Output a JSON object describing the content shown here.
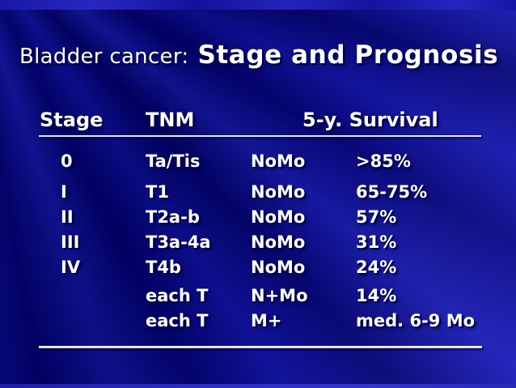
{
  "slide": {
    "title_prefix": "Bladder cancer:",
    "title_main": "Stage and Prognosis"
  },
  "table": {
    "headers": {
      "stage": "Stage",
      "tnm": "TNM",
      "survival": "5-y. Survival"
    },
    "rows": [
      {
        "stage": "0",
        "tnm": "Ta/Tis",
        "nm": "NoMo",
        "survival": ">85%"
      },
      {
        "stage": "I",
        "tnm": "T1",
        "nm": "NoMo",
        "survival": "65-75%"
      },
      {
        "stage": "II",
        "tnm": "T2a-b",
        "nm": "NoMo",
        "survival": "57%"
      },
      {
        "stage": "III",
        "tnm": "T3a-4a",
        "nm": "NoMo",
        "survival": "31%"
      },
      {
        "stage": "IV",
        "tnm": "T4b",
        "nm": "NoMo",
        "survival": "24%"
      },
      {
        "stage": "",
        "tnm": "each T",
        "nm": "N+Mo",
        "survival": "14%"
      },
      {
        "stage": "",
        "tnm": "each T",
        "nm": "M+",
        "survival": "med. 6-9 Mo"
      }
    ]
  },
  "colors": {
    "background_base": "#00007a",
    "background_ray_light": "#1414a2",
    "top_strip": "#1c1cb0",
    "bottom_strip": "#2d2dbe",
    "text": "#ffffff",
    "text_shadow": "#000042",
    "rule_line": "#f2f2f8"
  }
}
